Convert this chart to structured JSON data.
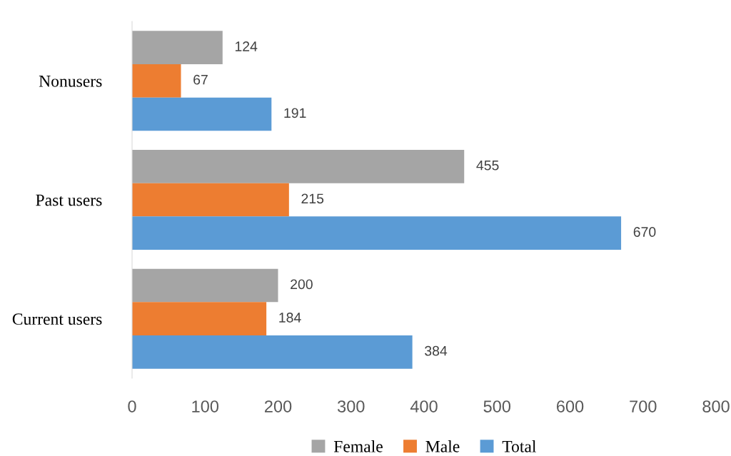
{
  "chart_data": {
    "type": "bar",
    "orientation": "horizontal",
    "categories": [
      "Nonusers",
      "Past users",
      "Current users"
    ],
    "series": [
      {
        "name": "Female",
        "color": "#a5a5a5",
        "values": [
          124,
          455,
          200
        ]
      },
      {
        "name": "Male",
        "color": "#ed7d31",
        "values": [
          67,
          215,
          184
        ]
      },
      {
        "name": "Total",
        "color": "#5b9bd5",
        "values": [
          191,
          670,
          384
        ]
      }
    ],
    "xlim": [
      0,
      800
    ],
    "xticks": [
      0,
      100,
      200,
      300,
      400,
      500,
      600,
      700,
      800
    ],
    "data_labels": true,
    "grid": false,
    "legend": "bottom"
  }
}
